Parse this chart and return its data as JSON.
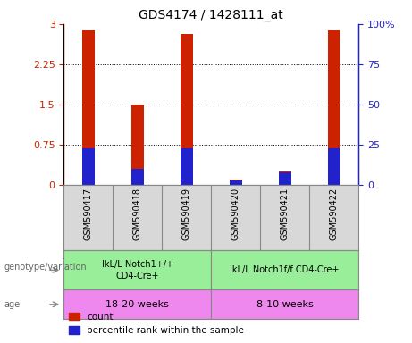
{
  "title": "GDS4174 / 1428111_at",
  "samples": [
    "GSM590417",
    "GSM590418",
    "GSM590419",
    "GSM590420",
    "GSM590421",
    "GSM590422"
  ],
  "count_values": [
    2.88,
    1.5,
    2.82,
    0.1,
    0.25,
    2.88
  ],
  "percentile_values": [
    23,
    10,
    23,
    3,
    8,
    23
  ],
  "bar_color": "#cc2200",
  "percentile_color": "#2222cc",
  "ylim_left": [
    0,
    3
  ],
  "ylim_right": [
    0,
    100
  ],
  "yticks_left": [
    0,
    0.75,
    1.5,
    2.25,
    3
  ],
  "yticks_right": [
    0,
    25,
    50,
    75,
    100
  ],
  "ytick_labels_left": [
    "0",
    "0.75",
    "1.5",
    "2.25",
    "3"
  ],
  "ytick_labels_right": [
    "0",
    "25",
    "50",
    "75",
    "100%"
  ],
  "left_tick_color": "#cc2200",
  "right_tick_color": "#2222cc",
  "genotype_group1": "IkL/L Notch1+/+\nCD4-Cre+",
  "genotype_group2": "IkL/L Notch1f/f CD4-Cre+",
  "age_group1": "18-20 weeks",
  "age_group2": "8-10 weeks",
  "genotype_color": "#99ee99",
  "age_color": "#ee88ee",
  "sample_bg_color": "#d8d8d8",
  "legend_count": "count",
  "legend_percentile": "percentile rank within the sample",
  "bar_width": 0.25,
  "blue_bar_width": 0.25
}
